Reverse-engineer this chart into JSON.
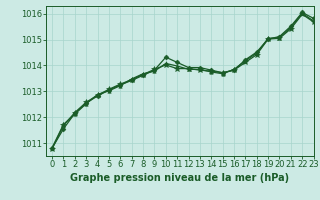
{
  "title": "Graphe pression niveau de la mer (hPa)",
  "background_color": "#cceae4",
  "grid_color": "#a8d5cc",
  "line_color": "#1a5c28",
  "xlim": [
    -0.5,
    23
  ],
  "ylim": [
    1010.5,
    1016.3
  ],
  "yticks": [
    1011,
    1012,
    1013,
    1014,
    1015,
    1016
  ],
  "xticks": [
    0,
    1,
    2,
    3,
    4,
    5,
    6,
    7,
    8,
    9,
    10,
    11,
    12,
    13,
    14,
    15,
    16,
    17,
    18,
    19,
    20,
    21,
    22,
    23
  ],
  "series": [
    [
      1010.8,
      1011.55,
      1012.15,
      1012.55,
      1012.82,
      1013.05,
      1013.25,
      1013.42,
      1013.62,
      1013.82,
      1014.32,
      1014.12,
      1013.92,
      1013.92,
      1013.82,
      1013.72,
      1013.82,
      1014.22,
      1014.52,
      1015.02,
      1015.12,
      1015.52,
      1016.05,
      1015.82
    ],
    [
      1010.78,
      1011.68,
      1012.18,
      1012.58,
      1012.85,
      1013.08,
      1013.28,
      1013.45,
      1013.65,
      1013.85,
      1014.02,
      1013.88,
      1013.88,
      1013.82,
      1013.78,
      1013.72,
      1013.82,
      1014.12,
      1014.42,
      1015.02,
      1015.05,
      1015.42,
      1015.98,
      1015.68
    ],
    [
      1010.82,
      1011.72,
      1012.12,
      1012.52,
      1012.88,
      1013.02,
      1013.22,
      1013.48,
      1013.68,
      1013.78,
      1014.08,
      1013.98,
      1013.85,
      1013.85,
      1013.75,
      1013.68,
      1013.85,
      1014.18,
      1014.48,
      1015.05,
      1015.08,
      1015.48,
      1016.02,
      1015.72
    ]
  ],
  "markers": [
    "D",
    "*",
    "^"
  ],
  "markersizes": [
    2.5,
    4,
    2.5
  ],
  "linewidths": [
    0.9,
    0.9,
    0.9
  ],
  "tick_fontsize": 6,
  "title_fontsize": 7
}
